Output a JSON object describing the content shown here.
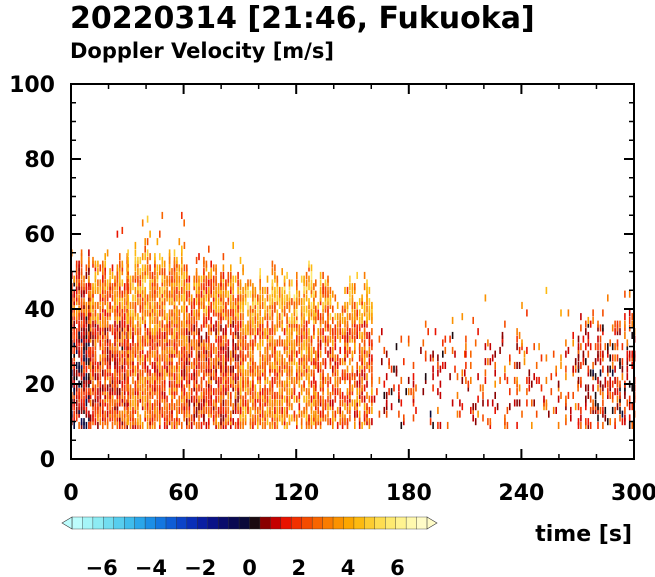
{
  "chart_data": {
    "type": "heatmap",
    "title": "20220314 [21:46, Fukuoka]",
    "subtitle": "Doppler Velocity [m/s]",
    "xlabel": "time [s]",
    "ylabel": "",
    "xlim": [
      0,
      300
    ],
    "ylim": [
      0,
      100
    ],
    "xticks": [
      "0",
      "60",
      "120",
      "180",
      "240",
      "300"
    ],
    "yticks": [
      "0",
      "20",
      "40",
      "60",
      "80",
      "100"
    ],
    "grid": false,
    "colorbar": {
      "range": [
        -7.2,
        7.2
      ],
      "tick_labels": [
        "−6",
        "−4",
        "−2",
        "0",
        "2",
        "4",
        "6"
      ],
      "colors": [
        "#bdfdfd",
        "#a5f5f8",
        "#8debf3",
        "#72ddf0",
        "#57cdee",
        "#3fbcec",
        "#2aa6ea",
        "#1c8ee6",
        "#1476e0",
        "#0f5dd6",
        "#0c44c9",
        "#0a2fb8",
        "#0a1ea2",
        "#0a1288",
        "#0a0c6c",
        "#090952",
        "#0a0a3a",
        "#1a0a10",
        "#8a0000",
        "#c40000",
        "#e81200",
        "#f23000",
        "#f54c00",
        "#f86500",
        "#fa7c00",
        "#fb9200",
        "#fca600",
        "#fdba10",
        "#fdcc30",
        "#fedd50",
        "#feea70",
        "#fff390",
        "#fff9ae",
        "#fffcc8"
      ]
    },
    "series": [
      {
        "x_range": [
          0,
          10
        ],
        "density": 0.75,
        "velocity_mean": 1.5,
        "z_top_typical": 50,
        "z_top_max": 58
      },
      {
        "x_range": [
          10,
          30
        ],
        "density": 0.72,
        "velocity_mean": 2.5,
        "z_top_typical": 50,
        "z_top_max": 64
      },
      {
        "x_range": [
          30,
          60
        ],
        "density": 0.7,
        "velocity_mean": 3.0,
        "z_top_typical": 52,
        "z_top_max": 70
      },
      {
        "x_range": [
          60,
          90
        ],
        "density": 0.65,
        "velocity_mean": 2.5,
        "z_top_typical": 50,
        "z_top_max": 60
      },
      {
        "x_range": [
          90,
          130
        ],
        "density": 0.6,
        "velocity_mean": 3.5,
        "z_top_typical": 48,
        "z_top_max": 52
      },
      {
        "x_range": [
          130,
          160
        ],
        "density": 0.5,
        "velocity_mean": 3.0,
        "z_top_typical": 45,
        "z_top_max": 50
      },
      {
        "x_range": [
          160,
          210
        ],
        "density": 0.12,
        "velocity_mean": 2.0,
        "z_top_typical": 33,
        "z_top_max": 38
      },
      {
        "x_range": [
          210,
          270
        ],
        "density": 0.15,
        "velocity_mean": 2.5,
        "z_top_typical": 30,
        "z_top_max": 48
      },
      {
        "x_range": [
          270,
          300
        ],
        "density": 0.3,
        "velocity_mean": 2.0,
        "z_top_typical": 35,
        "z_top_max": 50
      }
    ],
    "z_bottom": 8
  }
}
